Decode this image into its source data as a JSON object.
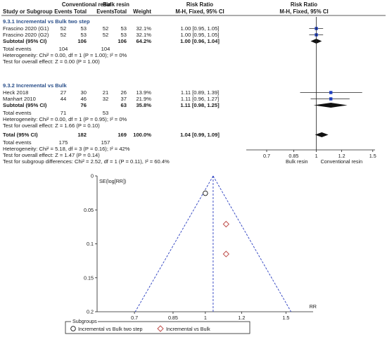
{
  "chart_data": [
    {
      "type": "table",
      "headers": {
        "group1": "Conventional resin",
        "group2": "Bulk resin",
        "rr": "Risk Ratio",
        "rr_method": "M-H, Fixed, 95% CI",
        "rr2": "Risk Ratio",
        "rr2_method": "M-H, Fixed, 95% CI",
        "cols": [
          "Study or Subgroup",
          "Events",
          "Total",
          "Events",
          "Total",
          "Weight"
        ]
      },
      "subgroups": [
        {
          "title": "9.3.1 Incremental vs Bulk two step",
          "studies": [
            {
              "name": "Frascino 2020 (G1)",
              "e1": "52",
              "t1": "53",
              "e2": "52",
              "t2": "53",
              "weight": "32.1%",
              "ci": "1.00 [0.95, 1.05]",
              "rr": 1.0,
              "lo": 0.95,
              "hi": 1.05
            },
            {
              "name": "Frascino 2020 (G2)",
              "e1": "52",
              "t1": "53",
              "e2": "52",
              "t2": "53",
              "weight": "32.1%",
              "ci": "1.00 [0.95, 1.05]",
              "rr": 1.0,
              "lo": 0.95,
              "hi": 1.05
            }
          ],
          "subtotal": {
            "label": "Subtotal (95% CI)",
            "t1": "106",
            "t2": "106",
            "weight": "64.2%",
            "ci": "1.00 [0.96, 1.04]",
            "rr": 1.0,
            "lo": 0.96,
            "hi": 1.04
          },
          "events": {
            "label": "Total events",
            "e1": "104",
            "e2": "104"
          },
          "het": "Heterogeneity: Chi² = 0.00, df = 1 (P = 1.00); I² = 0%",
          "effect": "Test for overall effect: Z = 0.00 (P = 1.00)"
        },
        {
          "title": "9.3.2 Incremental vs Bulk",
          "studies": [
            {
              "name": "Heck 2018",
              "e1": "27",
              "t1": "30",
              "e2": "21",
              "t2": "26",
              "weight": "13.9%",
              "ci": "1.11 [0.89, 1.39]",
              "rr": 1.11,
              "lo": 0.89,
              "hi": 1.39
            },
            {
              "name": "Manhart 2010",
              "e1": "44",
              "t1": "46",
              "e2": "32",
              "t2": "37",
              "weight": "21.9%",
              "ci": "1.11 [0.96, 1.27]",
              "rr": 1.11,
              "lo": 0.96,
              "hi": 1.27
            }
          ],
          "subtotal": {
            "label": "Subtotal (95% CI)",
            "t1": "76",
            "t2": "63",
            "weight": "35.8%",
            "ci": "1.11 [0.98, 1.25]",
            "rr": 1.11,
            "lo": 0.98,
            "hi": 1.25
          },
          "events": {
            "label": "Total events",
            "e1": "71",
            "e2": "53"
          },
          "het": "Heterogeneity: Chi² = 0.00, df = 1 (P = 0.95); I² = 0%",
          "effect": "Test for overall effect: Z = 1.66 (P = 0.10)"
        }
      ],
      "total": {
        "label": "Total (95% CI)",
        "t1": "182",
        "t2": "169",
        "weight": "100.0%",
        "ci": "1.04 [0.99, 1.09]",
        "rr": 1.04,
        "lo": 0.99,
        "hi": 1.09
      },
      "total_events": {
        "label": "Total events",
        "e1": "175",
        "e2": "157"
      },
      "total_het": "Heterogeneity: Chi² = 5.18, df = 3 (P = 0.16); I² = 42%",
      "total_effect": "Test for overall effect: Z = 1.47 (P = 0.14)",
      "subgroup_diff": "Test for subgroup differences: Chi² = 2.52, df = 1 (P = 0.11), I² = 60.4%"
    },
    {
      "type": "scatter",
      "subtitle": "forest plot",
      "xscale": "log",
      "xlim": [
        0.62,
        1.62
      ],
      "ticks": [
        "0.7",
        "0.85",
        "1",
        "1.2",
        "1.5"
      ],
      "tick_values": [
        0.7,
        0.85,
        1.0,
        1.2,
        1.5
      ],
      "xlabel_left": "Bulk resin",
      "xlabel_right": "Conventional resin",
      "marker_color": "#1f3fbf"
    },
    {
      "type": "scatter",
      "subtitle": "funnel plot",
      "xscale": "log",
      "xlim": [
        0.58,
        1.72
      ],
      "ylim": [
        0,
        0.2
      ],
      "ylabel": "SE(log[RR])",
      "xlabel": "RR",
      "xticks": [
        "0.7",
        "0.85",
        "1",
        "1.2",
        "1.5"
      ],
      "xtick_values": [
        0.7,
        0.85,
        1.0,
        1.2,
        1.5
      ],
      "yticks": [
        "0",
        "0.05",
        "0.1",
        "0.15",
        "0.2"
      ],
      "ytick_values": [
        0,
        0.05,
        0.1,
        0.15,
        0.2
      ],
      "pooled_rr": 1.04,
      "series": [
        {
          "name": "Incremental vs Bulk two step",
          "marker": "circle",
          "points": [
            {
              "x": 1.0,
              "y": 0.0255
            }
          ]
        },
        {
          "name": "Incremental vs Bulk",
          "marker": "diamond",
          "color": "#c0504d",
          "points": [
            {
              "x": 1.11,
              "y": 0.071
            },
            {
              "x": 1.11,
              "y": 0.115
            }
          ]
        }
      ],
      "legend_title": "Subgroups",
      "legend_position": "bottom"
    }
  ]
}
